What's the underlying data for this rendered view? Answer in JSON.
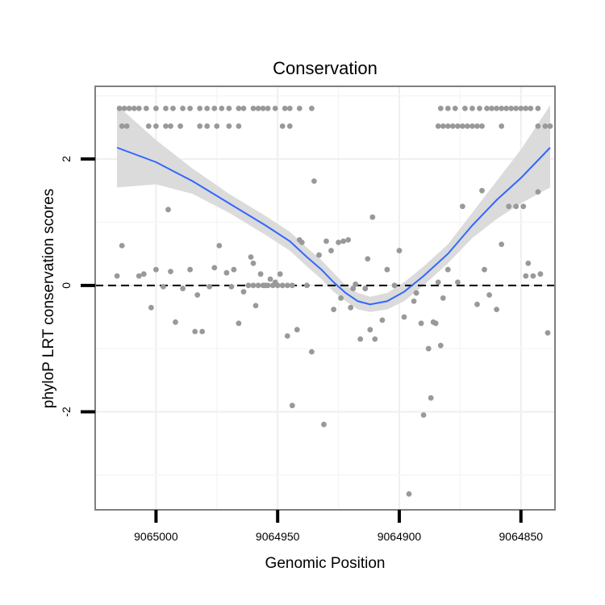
{
  "chart_data": {
    "type": "scatter",
    "title": "Conservation",
    "xlabel": "Genomic Position",
    "ylabel": "phyloP LRT conservation scores",
    "x_reversed": true,
    "xlim": [
      9065025,
      9064836
    ],
    "ylim": [
      -3.55,
      3.15
    ],
    "x_ticks": [
      {
        "value": 9065000,
        "label": "9065000"
      },
      {
        "value": 9064950,
        "label": "9064950"
      },
      {
        "value": 9064900,
        "label": "9064900"
      },
      {
        "value": 9064850,
        "label": "9064850"
      }
    ],
    "y_ticks": [
      {
        "value": 2,
        "label": "2"
      },
      {
        "value": 0,
        "label": "0"
      },
      {
        "value": -2,
        "label": "-2"
      }
    ],
    "reference_line": {
      "y": 0,
      "style": "dashed"
    },
    "point_color": "#999999",
    "smooth_color": "#3366ff",
    "ribbon_color": "#d9d9d9",
    "series": [
      {
        "name": "points",
        "points": [
          [
            9065015,
            2.8
          ],
          [
            9065013,
            2.8
          ],
          [
            9065011,
            2.8
          ],
          [
            9065009,
            2.8
          ],
          [
            9065007,
            2.8
          ],
          [
            9065004,
            2.8
          ],
          [
            9065000,
            2.8
          ],
          [
            9064996,
            2.8
          ],
          [
            9064993,
            2.8
          ],
          [
            9064989,
            2.8
          ],
          [
            9064986,
            2.8
          ],
          [
            9064982,
            2.8
          ],
          [
            9064979,
            2.8
          ],
          [
            9064976,
            2.8
          ],
          [
            9064973,
            2.8
          ],
          [
            9064970,
            2.8
          ],
          [
            9064966,
            2.8
          ],
          [
            9064964,
            2.8
          ],
          [
            9064960,
            2.8
          ],
          [
            9064958,
            2.8
          ],
          [
            9064956,
            2.8
          ],
          [
            9064954,
            2.8
          ],
          [
            9064951,
            2.8
          ],
          [
            9064947,
            2.8
          ],
          [
            9064945,
            2.8
          ],
          [
            9064941,
            2.8
          ],
          [
            9064936,
            2.8
          ],
          [
            9065014,
            2.52
          ],
          [
            9065012,
            2.52
          ],
          [
            9065003,
            2.52
          ],
          [
            9065000,
            2.52
          ],
          [
            9064996,
            2.52
          ],
          [
            9064994,
            2.52
          ],
          [
            9064990,
            2.52
          ],
          [
            9064982,
            2.52
          ],
          [
            9064979,
            2.52
          ],
          [
            9064975,
            2.52
          ],
          [
            9064970,
            2.52
          ],
          [
            9064966,
            2.52
          ],
          [
            9064948,
            2.52
          ],
          [
            9064945,
            2.52
          ],
          [
            9065016,
            0.15
          ],
          [
            9065014,
            0.63
          ],
          [
            9065007,
            0.15
          ],
          [
            9065005,
            0.18
          ],
          [
            9065002,
            -0.35
          ],
          [
            9065000,
            0.25
          ],
          [
            9064997,
            -0.02
          ],
          [
            9064995,
            1.2
          ],
          [
            9064994,
            0.22
          ],
          [
            9064992,
            -0.58
          ],
          [
            9064989,
            -0.05
          ],
          [
            9064986,
            0.25
          ],
          [
            9064984,
            -0.73
          ],
          [
            9064983,
            -0.15
          ],
          [
            9064981,
            -0.73
          ],
          [
            9064978,
            -0.02
          ],
          [
            9064976,
            0.28
          ],
          [
            9064974,
            0.63
          ],
          [
            9064971,
            0.2
          ],
          [
            9064969,
            -0.02
          ],
          [
            9064968,
            0.25
          ],
          [
            9064966,
            -0.6
          ],
          [
            9064964,
            -0.1
          ],
          [
            9064961,
            0.45
          ],
          [
            9064960,
            0.35
          ],
          [
            9064959,
            -0.32
          ],
          [
            9064957,
            0.18
          ],
          [
            9064955,
            0.0
          ],
          [
            9064953,
            0.1
          ],
          [
            9064951,
            0.05
          ],
          [
            9064949,
            0.18
          ],
          [
            9064946,
            -0.8
          ],
          [
            9064944,
            -1.9
          ],
          [
            9064942,
            -0.7
          ],
          [
            9064941,
            0.72
          ],
          [
            9064940,
            0.68
          ],
          [
            9064938,
            0.0
          ],
          [
            9064936,
            -1.05
          ],
          [
            9064935,
            1.65
          ],
          [
            9064933,
            0.48
          ],
          [
            9064931,
            -2.2
          ],
          [
            9064930,
            0.7
          ],
          [
            9064928,
            0.55
          ],
          [
            9064927,
            -0.38
          ],
          [
            9064925,
            0.68
          ],
          [
            9064924,
            -0.2
          ],
          [
            9064923,
            0.7
          ],
          [
            9064921,
            0.72
          ],
          [
            9064920,
            -0.35
          ],
          [
            9064919,
            -0.05
          ],
          [
            9064918,
            0.02
          ],
          [
            9064916,
            -0.85
          ],
          [
            9064914,
            -0.05
          ],
          [
            9064913,
            0.42
          ],
          [
            9064912,
            -0.7
          ],
          [
            9064911,
            1.08
          ],
          [
            9064910,
            -0.85
          ],
          [
            9064907,
            -0.55
          ],
          [
            9064905,
            0.25
          ],
          [
            9064902,
            0.0
          ],
          [
            9064900,
            0.55
          ],
          [
            9064898,
            -0.5
          ],
          [
            9064896,
            -3.3
          ],
          [
            9064894,
            -0.25
          ],
          [
            9064893,
            -0.12
          ],
          [
            9064891,
            -0.6
          ],
          [
            9064890,
            -2.05
          ],
          [
            9064888,
            -1.0
          ],
          [
            9064887,
            -1.78
          ],
          [
            9064886,
            -0.58
          ],
          [
            9064885,
            -0.6
          ],
          [
            9064884,
            0.05
          ],
          [
            9064883,
            -0.95
          ],
          [
            9064882,
            -0.2
          ],
          [
            9064880,
            0.25
          ],
          [
            9064876,
            0.05
          ],
          [
            9064874,
            1.25
          ],
          [
            9064868,
            -0.3
          ],
          [
            9064866,
            1.5
          ],
          [
            9064865,
            0.25
          ],
          [
            9064863,
            -0.15
          ],
          [
            9064860,
            -0.38
          ],
          [
            9064858,
            0.65
          ],
          [
            9064855,
            1.25
          ],
          [
            9064852,
            1.25
          ],
          [
            9064849,
            1.25
          ],
          [
            9064848,
            0.15
          ],
          [
            9064847,
            0.35
          ],
          [
            9064845,
            0.15
          ],
          [
            9064843,
            1.48
          ],
          [
            9064842,
            0.18
          ],
          [
            9064839,
            -0.75
          ],
          [
            9064944,
            0.0
          ],
          [
            9064946,
            0.0
          ],
          [
            9064948,
            0.0
          ],
          [
            9064950,
            0.0
          ],
          [
            9064952,
            0.0
          ],
          [
            9064954,
            0.0
          ],
          [
            9064956,
            0.0
          ],
          [
            9064958,
            0.0
          ],
          [
            9064960,
            0.0
          ],
          [
            9064962,
            0.0
          ],
          [
            9064883,
            2.8
          ],
          [
            9064880,
            2.8
          ],
          [
            9064877,
            2.8
          ],
          [
            9064873,
            2.8
          ],
          [
            9064870,
            2.8
          ],
          [
            9064867,
            2.8
          ],
          [
            9064864,
            2.8
          ],
          [
            9064862,
            2.8
          ],
          [
            9064860,
            2.8
          ],
          [
            9064858,
            2.8
          ],
          [
            9064856,
            2.8
          ],
          [
            9064854,
            2.8
          ],
          [
            9064852,
            2.8
          ],
          [
            9064850,
            2.8
          ],
          [
            9064848,
            2.8
          ],
          [
            9064846,
            2.8
          ],
          [
            9064843,
            2.8
          ],
          [
            9064884,
            2.52
          ],
          [
            9064882,
            2.52
          ],
          [
            9064880,
            2.52
          ],
          [
            9064878,
            2.52
          ],
          [
            9064876,
            2.52
          ],
          [
            9064874,
            2.52
          ],
          [
            9064872,
            2.52
          ],
          [
            9064870,
            2.52
          ],
          [
            9064868,
            2.52
          ],
          [
            9064866,
            2.52
          ],
          [
            9064858,
            2.52
          ],
          [
            9064843,
            2.52
          ],
          [
            9064840,
            2.52
          ],
          [
            9064838,
            2.52
          ]
        ]
      },
      {
        "name": "smooth",
        "x": [
          9065016,
          9065000,
          9064985,
          9064970,
          9064955,
          9064945,
          9064938,
          9064932,
          9064927,
          9064922,
          9064917,
          9064912,
          9064905,
          9064898,
          9064890,
          9064880,
          9064870,
          9064860,
          9064850,
          9064838
        ],
        "y": [
          2.18,
          1.95,
          1.65,
          1.3,
          0.95,
          0.7,
          0.45,
          0.25,
          0.05,
          -0.12,
          -0.25,
          -0.3,
          -0.25,
          -0.1,
          0.15,
          0.5,
          0.95,
          1.35,
          1.7,
          2.18
        ],
        "lower": [
          1.55,
          1.6,
          1.45,
          1.15,
          0.8,
          0.55,
          0.3,
          0.1,
          -0.1,
          -0.25,
          -0.38,
          -0.42,
          -0.38,
          -0.25,
          0.0,
          0.35,
          0.75,
          1.05,
          1.3,
          1.55
        ],
        "upper": [
          2.85,
          2.3,
          1.85,
          1.45,
          1.1,
          0.85,
          0.6,
          0.4,
          0.2,
          0.0,
          -0.12,
          -0.18,
          -0.12,
          0.05,
          0.3,
          0.65,
          1.15,
          1.65,
          2.15,
          2.85
        ]
      }
    ]
  }
}
